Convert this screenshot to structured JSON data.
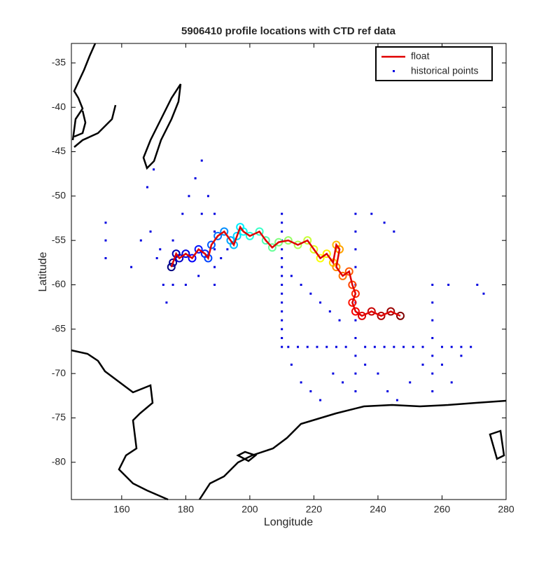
{
  "chart_data": {
    "type": "map-track",
    "title": "5906410 profile locations with CTD ref data",
    "x_label": "Longitude",
    "y_label": "Latitude",
    "xlim": [
      144.3,
      280
    ],
    "ylim": [
      -84.2,
      -32.8
    ],
    "xticks": [
      160,
      180,
      200,
      220,
      240,
      260,
      280
    ],
    "yticks": [
      -80,
      -75,
      -70,
      -65,
      -60,
      -55,
      -50,
      -45,
      -40,
      -35
    ],
    "legend_position": "upper-right",
    "series": [
      {
        "name": "float",
        "color": "#e00000",
        "x": [
          175.5,
          176,
          177,
          178,
          180,
          182,
          184,
          186,
          187,
          188,
          190,
          192,
          194,
          195,
          196,
          197,
          198,
          200,
          203,
          205,
          207,
          209,
          212,
          215,
          218,
          220,
          222,
          224,
          226,
          227,
          228,
          227,
          229,
          231,
          232,
          233,
          232,
          233,
          235,
          238,
          241,
          244,
          247
        ],
        "y": [
          -58,
          -57.5,
          -56.5,
          -57,
          -56.5,
          -57,
          -56,
          -56.5,
          -57,
          -55.5,
          -54.5,
          -54,
          -55,
          -55.5,
          -54.5,
          -53.5,
          -54,
          -54.5,
          -54,
          -55,
          -55.8,
          -55.2,
          -55,
          -55.5,
          -55,
          -56,
          -57,
          -56.5,
          -57.5,
          -55.5,
          -56,
          -58,
          -59,
          -58.5,
          -60,
          -61,
          -62,
          -63,
          -63.5,
          -63,
          -63.5,
          -63,
          -63.5
        ]
      },
      {
        "name": "historical points",
        "color": "#0000e0",
        "x": [
          210,
          210,
          210,
          210,
          210,
          210,
          210,
          210,
          210,
          210,
          210,
          210,
          210,
          210,
          210,
          210,
          212,
          215,
          218,
          221,
          224,
          227,
          230,
          236,
          239,
          242,
          245,
          248,
          251,
          254,
          260,
          263,
          266,
          269,
          257,
          257,
          257,
          257,
          257,
          257,
          257,
          233,
          233,
          233,
          233,
          233,
          233,
          233,
          233,
          233,
          233,
          233,
          189,
          189,
          189,
          189,
          189,
          155,
          155,
          155,
          172,
          173,
          174,
          176,
          179,
          181,
          183,
          185,
          185,
          187,
          166,
          169,
          171,
          163,
          168,
          170,
          176,
          180,
          184,
          191,
          193,
          213,
          216,
          219,
          222,
          225,
          228,
          213,
          216,
          219,
          222,
          226,
          229,
          236,
          240,
          243,
          246,
          250,
          254,
          260,
          263,
          266,
          271,
          273,
          262,
          238,
          242,
          245
        ],
        "y": [
          -52,
          -53,
          -54,
          -55,
          -56,
          -57,
          -58,
          -59,
          -60,
          -61,
          -62,
          -63,
          -64,
          -65,
          -66,
          -67,
          -67,
          -67,
          -67,
          -67,
          -67,
          -67,
          -67,
          -67,
          -67,
          -67,
          -67,
          -67,
          -67,
          -67,
          -67,
          -67,
          -67,
          -67,
          -60,
          -62,
          -64,
          -66,
          -68,
          -70,
          -72,
          -52,
          -54,
          -56,
          -58,
          -60,
          -62,
          -64,
          -66,
          -68,
          -70,
          -72,
          -52,
          -54,
          -56,
          -58,
          -60,
          -53,
          -55,
          -57,
          -56,
          -60,
          -62,
          -55,
          -52,
          -50,
          -48,
          -46,
          -52,
          -50,
          -55,
          -54,
          -57,
          -58,
          -49,
          -47,
          -60,
          -60,
          -59,
          -57,
          -56,
          -59,
          -60,
          -61,
          -62,
          -63,
          -64,
          -69,
          -71,
          -72,
          -73,
          -70,
          -71,
          -69,
          -70,
          -72,
          -73,
          -71,
          -69,
          -69,
          -71,
          -68,
          -60,
          -61,
          -60,
          -52,
          -53,
          -54
        ]
      }
    ]
  }
}
